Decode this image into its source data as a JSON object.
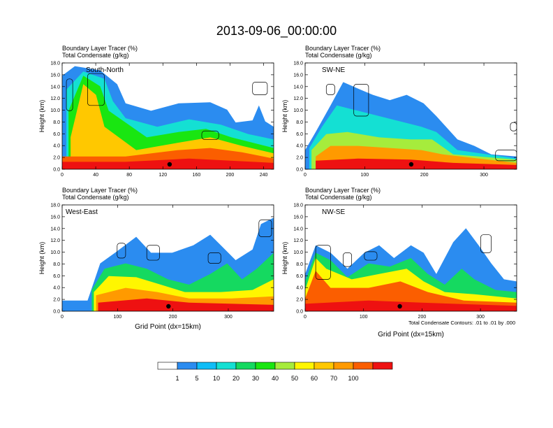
{
  "page": {
    "title": "2013-09-06_00:00:00"
  },
  "panels": [
    {
      "id": "south-north",
      "left_title": "Boundary Layer Tracer",
      "left_units": "(%)",
      "right_title": "Total Condensate",
      "right_units": "(g/kg)",
      "inner_label": "South-North",
      "ylabel": "Height (km)",
      "xlabel": "",
      "xticks": [
        "0",
        "40",
        "80",
        "120",
        "160",
        "200",
        "240"
      ],
      "xmax": 252
    },
    {
      "id": "sw-ne",
      "left_title": "Boundary Layer Tracer",
      "left_units": "(%)",
      "right_title": "Total Condensate",
      "right_units": "(g/kg)",
      "inner_label": "SW-NE",
      "ylabel": "Height (km)",
      "xlabel": "",
      "xticks": [
        "0",
        "100",
        "200",
        "300"
      ],
      "xmax": 355
    },
    {
      "id": "west-east",
      "left_title": "Boundary Layer Tracer",
      "left_units": "(%)",
      "right_title": "Total Condensate",
      "right_units": "(g/kg)",
      "inner_label": "West-East",
      "ylabel": "Height (km)",
      "xlabel": "Grid Point (dx=15km)",
      "xticks": [
        "0",
        "100",
        "200",
        "300"
      ],
      "xmax": 382
    },
    {
      "id": "nw-se",
      "left_title": "Boundary Layer Tracer",
      "left_units": "(%)",
      "right_title": "Total Condensate",
      "right_units": "(g/kg)",
      "inner_label": "NW-SE",
      "ylabel": "Height (km)",
      "xlabel": "Grid Point (dx=15km)",
      "xticks": [
        "0",
        "100",
        "200",
        "300"
      ],
      "xmax": 362
    }
  ],
  "yticks": [
    "0.0",
    "2.0",
    "4.0",
    "6.0",
    "8.0",
    "10.0",
    "12.0",
    "14.0",
    "16.0",
    "18.0"
  ],
  "contour_note": "Total Condensate Contours: .01 to .01 by .000",
  "colorbar": {
    "labels": [
      "1",
      "5",
      "10",
      "20",
      "30",
      "40",
      "50",
      "60",
      "70",
      "100"
    ],
    "colors": [
      "#ffffff",
      "#2b8cf0",
      "#0fbdf7",
      "#14e0d3",
      "#15d960",
      "#19e611",
      "#a6ec3c",
      "#fff600",
      "#ffc800",
      "#ff9a00",
      "#fb5e00",
      "#ee1111"
    ]
  },
  "chart_data": [
    {
      "type": "heatmap",
      "title": "South-North",
      "xlabel": "",
      "ylabel": "Height (km)",
      "xlim": [
        0,
        252
      ],
      "ylim": [
        0,
        18
      ],
      "colorbar_levels": [
        1,
        5,
        10,
        20,
        30,
        40,
        50,
        60,
        70,
        100
      ],
      "tracer_plumes": [
        {
          "x": [
            8,
            50
          ],
          "top_km": 16,
          "peak_pct": 50
        },
        {
          "x": [
            30,
            100
          ],
          "top_km": 10,
          "peak_pct": 30
        },
        {
          "x": [
            60,
            252
          ],
          "top_km": 7,
          "peak_pct": 70
        }
      ],
      "terrain_marker_x": 128
    },
    {
      "type": "heatmap",
      "title": "SW-NE",
      "xlabel": "",
      "ylabel": "Height (km)",
      "xlim": [
        0,
        355
      ],
      "ylim": [
        0,
        18
      ],
      "colorbar_levels": [
        1,
        5,
        10,
        20,
        30,
        40,
        50,
        60,
        70,
        100
      ],
      "tracer_plumes": [
        {
          "x": [
            60,
            200
          ],
          "top_km": 14,
          "peak_pct": 30
        },
        {
          "x": [
            20,
            260
          ],
          "top_km": 8,
          "peak_pct": 100
        },
        {
          "x": [
            260,
            355
          ],
          "top_km": 3,
          "peak_pct": 70
        }
      ],
      "terrain_marker_x": 178
    },
    {
      "type": "heatmap",
      "title": "West-East",
      "xlabel": "Grid Point (dx=15km)",
      "ylabel": "Height (km)",
      "xlim": [
        0,
        382
      ],
      "ylim": [
        0,
        18
      ],
      "colorbar_levels": [
        1,
        5,
        10,
        20,
        30,
        40,
        50,
        60,
        70,
        100
      ],
      "tracer_plumes": [
        {
          "x": [
            60,
            382
          ],
          "top_km": 12,
          "peak_pct": 30
        },
        {
          "x": [
            40,
            330
          ],
          "top_km": 6,
          "peak_pct": 100
        },
        {
          "x": [
            355,
            382
          ],
          "top_km": 14,
          "peak_pct": 40
        }
      ],
      "terrain_marker_x": 192
    },
    {
      "type": "heatmap",
      "title": "NW-SE",
      "xlabel": "Grid Point (dx=15km)",
      "ylabel": "Height (km)",
      "xlim": [
        0,
        362
      ],
      "ylim": [
        0,
        18
      ],
      "colorbar_levels": [
        1,
        5,
        10,
        20,
        30,
        40,
        50,
        60,
        70,
        100
      ],
      "tracer_plumes": [
        {
          "x": [
            0,
            280
          ],
          "top_km": 11,
          "peak_pct": 100
        },
        {
          "x": [
            220,
            320
          ],
          "top_km": 14,
          "peak_pct": 30
        },
        {
          "x": [
            280,
            362
          ],
          "top_km": 5,
          "peak_pct": 40
        }
      ],
      "terrain_marker_x": 162
    }
  ]
}
